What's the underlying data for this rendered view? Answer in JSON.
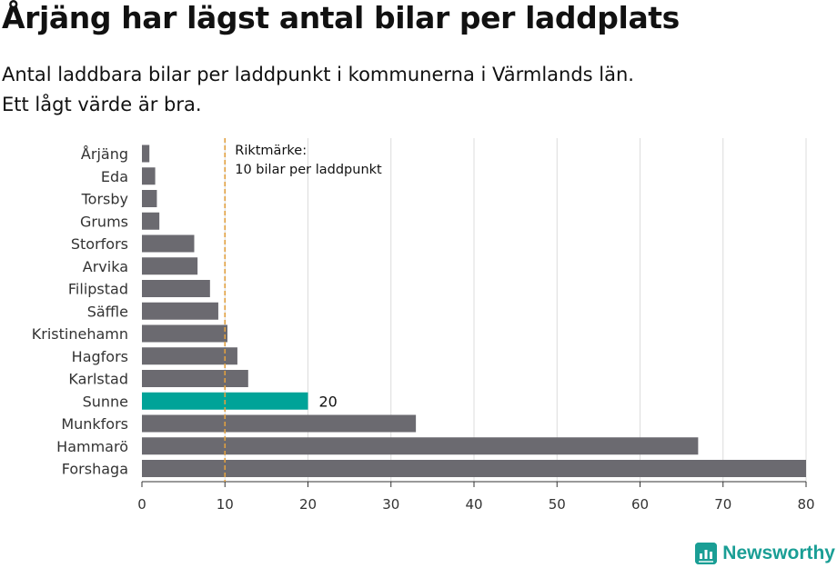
{
  "header": {
    "title": "Årjäng har lägst antal bilar per laddplats",
    "subtitle_line1": "Antal laddbara bilar per laddpunkt i kommunerna i Värmlands län.",
    "subtitle_line2": "Ett lågt värde är bra."
  },
  "brand": {
    "name": "Newsworthy",
    "icon": "newsworthy-logo-icon",
    "color": "#1a9e95"
  },
  "chart_data": {
    "type": "bar",
    "orientation": "horizontal",
    "categories": [
      "Årjäng",
      "Eda",
      "Torsby",
      "Grums",
      "Storfors",
      "Arvika",
      "Filipstad",
      "Säffle",
      "Kristinehamn",
      "Hagfors",
      "Karlstad",
      "Sunne",
      "Munkfors",
      "Hammarö",
      "Forshaga"
    ],
    "values": [
      0.9,
      1.6,
      1.8,
      2.1,
      6.3,
      6.7,
      8.2,
      9.2,
      10.3,
      11.5,
      12.8,
      20,
      33,
      67,
      80
    ],
    "highlight": {
      "category": "Sunne",
      "label": "20",
      "color": "#00a398"
    },
    "bar_color": "#6b6a70",
    "xlim": [
      0,
      80
    ],
    "xticks": [
      0,
      10,
      20,
      30,
      40,
      50,
      60,
      70,
      80
    ],
    "grid": true,
    "reference_line": {
      "value": 10,
      "color": "#e0a040",
      "style": "dashed",
      "label_line1": "Riktmärke:",
      "label_line2": "10 bilar per laddpunkt"
    }
  }
}
